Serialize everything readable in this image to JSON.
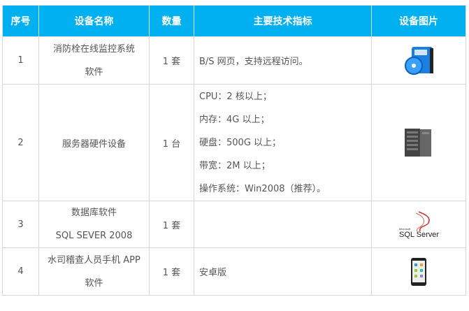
{
  "headers": [
    "序号",
    "设备名称",
    "数量",
    "主要技术指标",
    "设备图片"
  ],
  "rows": [
    {
      "no": "1",
      "name": [
        "消防栓在线监控系统",
        "软件"
      ],
      "qty": "1 套",
      "spec": [
        "B/S 网页，支持远程访问。"
      ],
      "image": "software-box-icon"
    },
    {
      "no": "2",
      "name": [
        "服务器硬件设备"
      ],
      "qty": "1 台",
      "spec": [
        "CPU：2 核以上；",
        "内存：4G 以上；",
        "硬盘：500G 以上；",
        "带宽：2M 以上；",
        "操作系统：Win2008（推荐）。"
      ],
      "image": "server-icon"
    },
    {
      "no": "3",
      "name": [
        "数据库软件",
        "SQL SEVER 2008"
      ],
      "qty": "1 套",
      "spec": [],
      "image": "sql-server-logo",
      "logo_text": [
        "Microsoft",
        "SQL Server"
      ]
    },
    {
      "no": "4",
      "name": [
        "水司稽查人员手机 APP",
        "软件"
      ],
      "qty": "1 套",
      "spec": [
        "安卓版"
      ],
      "image": "smartphone-icon"
    }
  ],
  "colors": {
    "header_bg": "#00b0f0",
    "border": "#d6d6d6"
  }
}
